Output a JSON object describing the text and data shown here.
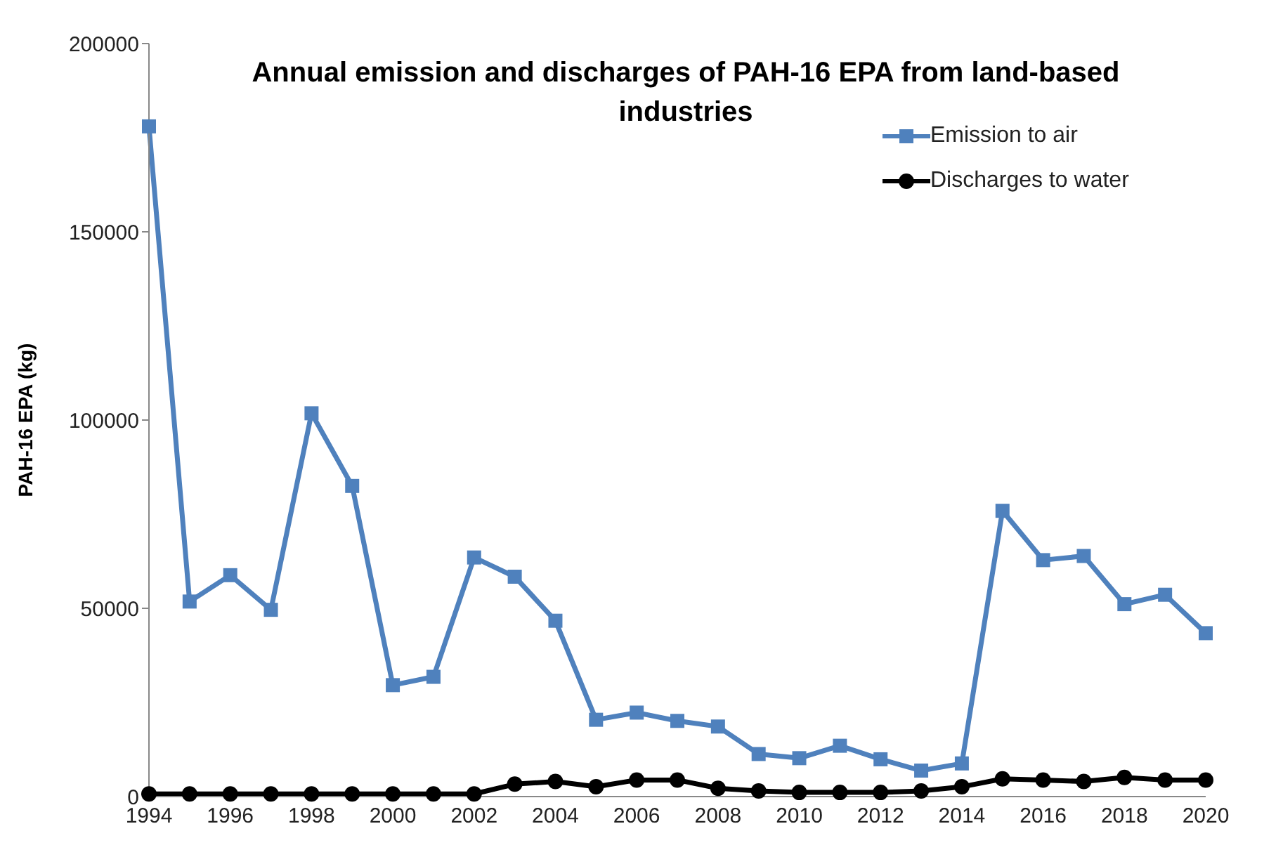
{
  "chart_data": {
    "type": "line",
    "title": "Annual emission and discharges of PAH-16 EPA from land-based industries",
    "ylabel": "PAH-16 EPA (kg)",
    "x": [
      1994,
      1995,
      1996,
      1997,
      1998,
      1999,
      2000,
      2001,
      2002,
      2003,
      2004,
      2005,
      2006,
      2007,
      2008,
      2009,
      2010,
      2011,
      2012,
      2013,
      2014,
      2015,
      2016,
      2017,
      2018,
      2019,
      2020
    ],
    "series": [
      {
        "name": "Emission to air",
        "color": "#4f81bd",
        "marker": "square",
        "values": [
          178000,
          51800,
          58800,
          49600,
          101800,
          82500,
          29600,
          31800,
          63500,
          58400,
          46700,
          20400,
          22300,
          20100,
          18600,
          11300,
          10200,
          13500,
          9900,
          6900,
          8800,
          75900,
          62800,
          63900,
          51100,
          53600,
          43400
        ]
      },
      {
        "name": "Discharges to water",
        "color": "#000000",
        "marker": "circle",
        "values": [
          700,
          700,
          700,
          700,
          700,
          700,
          700,
          700,
          700,
          3300,
          4000,
          2600,
          4400,
          4400,
          2200,
          1500,
          1100,
          1100,
          1100,
          1500,
          2600,
          4700,
          4400,
          4000,
          5100,
          4400,
          4400
        ]
      }
    ],
    "xlim": [
      1994,
      2020
    ],
    "xticks": [
      1994,
      1996,
      1998,
      2000,
      2002,
      2004,
      2006,
      2008,
      2010,
      2012,
      2014,
      2016,
      2018,
      2020
    ],
    "ylim": [
      0,
      200000
    ],
    "yticks": [
      0,
      50000,
      100000,
      150000,
      200000
    ],
    "grid": false,
    "legend": "top right",
    "line_style": "solid"
  }
}
